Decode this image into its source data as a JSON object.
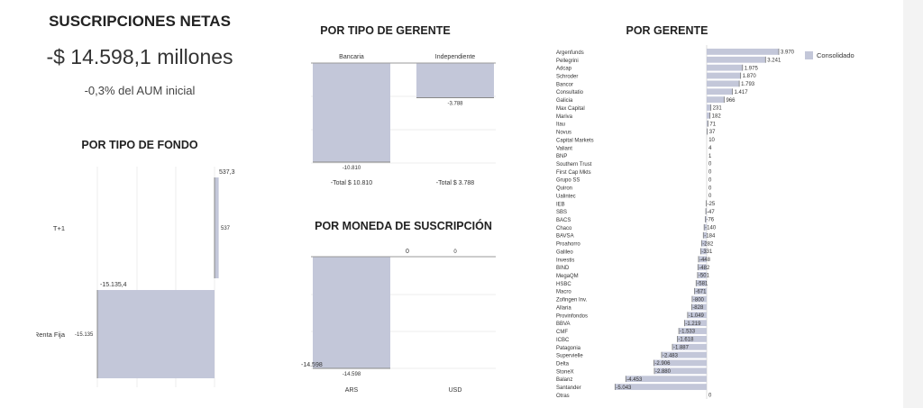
{
  "header": {
    "title": "SUSCRIPCIONES NETAS",
    "value": "-$ 14.598,1 millones",
    "subtitle": "-0,3% del AUM inicial"
  },
  "sections": {
    "fondo_title": "POR TIPO DE FONDO",
    "gerente_tipo_title": "POR TIPO DE GERENTE",
    "moneda_title": "POR MONEDA DE SUSCRIPCIÓN",
    "gerente_title": "POR GERENTE"
  },
  "legend": {
    "label": "Consolidado",
    "color": "#c3c7d9"
  },
  "chart_data": [
    {
      "id": "tipo_fondo",
      "type": "bar",
      "orientation": "horizontal",
      "categories": [
        "T+1",
        "Renta Fija"
      ],
      "values": [
        537,
        -15135
      ],
      "totals": [
        "537,3",
        "-15.135,4"
      ],
      "value_labels": [
        "537",
        "-15.135"
      ]
    },
    {
      "id": "tipo_gerente",
      "type": "bar",
      "categories": [
        "Bancaria",
        "Independiente"
      ],
      "values": [
        -10810,
        -3788
      ],
      "value_labels": [
        "-10.810",
        "-3.788"
      ],
      "totals": [
        "-Total $ 10.810",
        "-Total $ 3.788"
      ]
    },
    {
      "id": "moneda",
      "type": "bar",
      "categories": [
        "ARS",
        "USD"
      ],
      "values": [
        -14598,
        0
      ],
      "value_labels": [
        "-14.598",
        "0"
      ],
      "totals": [
        "-14.598",
        "0"
      ]
    },
    {
      "id": "gerente",
      "type": "bar",
      "orientation": "horizontal",
      "categories": [
        "Argenfunds",
        "Pellegrini",
        "Adcap",
        "Schroder",
        "Bancor",
        "Consultatio",
        "Galicia",
        "Max Capital",
        "Mariva",
        "Itau",
        "Novus",
        "Capital Markets",
        "Valiant",
        "BNP",
        "Southern Trust",
        "First Cap Mkts",
        "Grupo SS",
        "Quiron",
        "Ualintec",
        "IEB",
        "SBS",
        "BACS",
        "Chaco",
        "BAVSA",
        "Proahorro",
        "Galileo",
        "Investis",
        "BIND",
        "MegaQM",
        "HSBC",
        "Macro",
        "Zofingen Inv.",
        "Allaria",
        "Provinfondos",
        "BBVA",
        "CMF",
        "ICBC",
        "Patagonia",
        "Supervielle",
        "Delta",
        "StoneX",
        "Balanz",
        "Santander",
        "Otras"
      ],
      "values": [
        3970,
        3241,
        1975,
        1870,
        1793,
        1417,
        966,
        231,
        182,
        71,
        37,
        10,
        4,
        1,
        0,
        0,
        0,
        0,
        0,
        -25,
        -47,
        -76,
        -140,
        -184,
        -282,
        -331,
        -448,
        -482,
        -501,
        -581,
        -671,
        -800,
        -828,
        -1049,
        -1219,
        -1533,
        -1618,
        -1887,
        -2483,
        -2906,
        -2880,
        -4453,
        -5043,
        0
      ],
      "value_labels": [
        "3.970",
        "3.241",
        "1.975",
        "1.870",
        "1.793",
        "1.417",
        "966",
        "231",
        "182",
        "71",
        "37",
        "10",
        "4",
        "1",
        "0",
        "0",
        "0",
        "0",
        "0",
        "-25",
        "-47",
        "-76",
        "-140",
        "-184",
        "-282",
        "-331",
        "-448",
        "-482",
        "-501",
        "-581",
        "-671",
        "-800",
        "-828",
        "-1.049",
        "-1.219",
        "-1.533",
        "-1.618",
        "-1.887",
        "-2.483",
        "-2.906",
        "-2.880",
        "-4.453",
        "-5.043",
        "0"
      ]
    }
  ]
}
